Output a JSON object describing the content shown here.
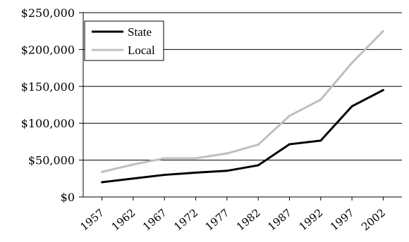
{
  "chart_data": {
    "type": "line",
    "title": "",
    "xlabel": "",
    "ylabel": "",
    "x": [
      1957,
      1962,
      1967,
      1972,
      1977,
      1982,
      1987,
      1992,
      1997,
      2002
    ],
    "series": [
      {
        "name": "State",
        "color": "#000000",
        "points": [
          [
            1957,
            20000
          ],
          [
            1962,
            25000
          ],
          [
            1967,
            30000
          ],
          [
            1972,
            33000
          ],
          [
            1977,
            35500
          ],
          [
            1982,
            43000
          ],
          [
            1987,
            71500
          ],
          [
            1992,
            76500
          ],
          [
            1997,
            123000
          ],
          [
            2002,
            145000
          ]
        ]
      },
      {
        "name": "Local",
        "color": "#bfbfbf",
        "points": [
          [
            1957,
            34000
          ],
          [
            1962,
            44000
          ],
          [
            1967,
            52500
          ],
          [
            1972,
            52500
          ],
          [
            1977,
            59000
          ],
          [
            1982,
            71000
          ],
          [
            1987,
            110000
          ],
          [
            1992,
            132000
          ],
          [
            1997,
            182000
          ],
          [
            2002,
            225000
          ]
        ]
      }
    ],
    "y_ticks": [
      0,
      50000,
      100000,
      150000,
      200000,
      250000
    ],
    "y_tick_labels": [
      "$0",
      "$50,000",
      "$100,000",
      "$150,000",
      "$200,000",
      "$250,000"
    ],
    "x_tick_labels": [
      "1957",
      "1962",
      "1967",
      "1972",
      "1977",
      "1982",
      "1987",
      "1992",
      "1997",
      "2002"
    ],
    "ylim": [
      0,
      250000
    ],
    "xlim": [
      1954,
      2005
    ],
    "grid": "horizontal",
    "legend": "top-left"
  }
}
